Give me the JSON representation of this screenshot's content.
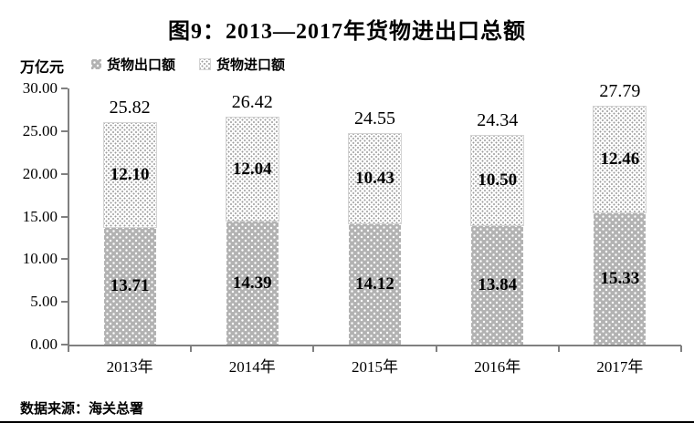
{
  "title": "图9：2013—2017年货物进出口总额",
  "unit_label": "万亿元",
  "legend": {
    "export_label": "货物出口额",
    "import_label": "货物进口额"
  },
  "source": "数据来源：海关总署",
  "colors": {
    "export_bar": "#b2b2b2",
    "import_bar": "#ffffff",
    "axis": "#808080",
    "text": "#000000"
  },
  "chart_data": {
    "type": "bar",
    "stacked": true,
    "title": "图9：2013—2017年货物进出口总额",
    "ylabel": "万亿元",
    "categories": [
      "2013年",
      "2014年",
      "2015年",
      "2016年",
      "2017年"
    ],
    "series": [
      {
        "name": "货物出口额",
        "values": [
          13.71,
          14.39,
          14.12,
          13.84,
          15.33
        ]
      },
      {
        "name": "货物进口额",
        "values": [
          12.1,
          12.04,
          10.43,
          10.5,
          12.46
        ]
      }
    ],
    "totals": [
      25.82,
      26.42,
      24.55,
      24.34,
      27.79
    ],
    "ylim": [
      0,
      30
    ],
    "ytick_step": 5,
    "ytick_labels": [
      "0.00",
      "5.00",
      "10.00",
      "15.00",
      "20.00",
      "25.00",
      "30.00"
    ],
    "grid": false,
    "legend_position": "top-left"
  }
}
